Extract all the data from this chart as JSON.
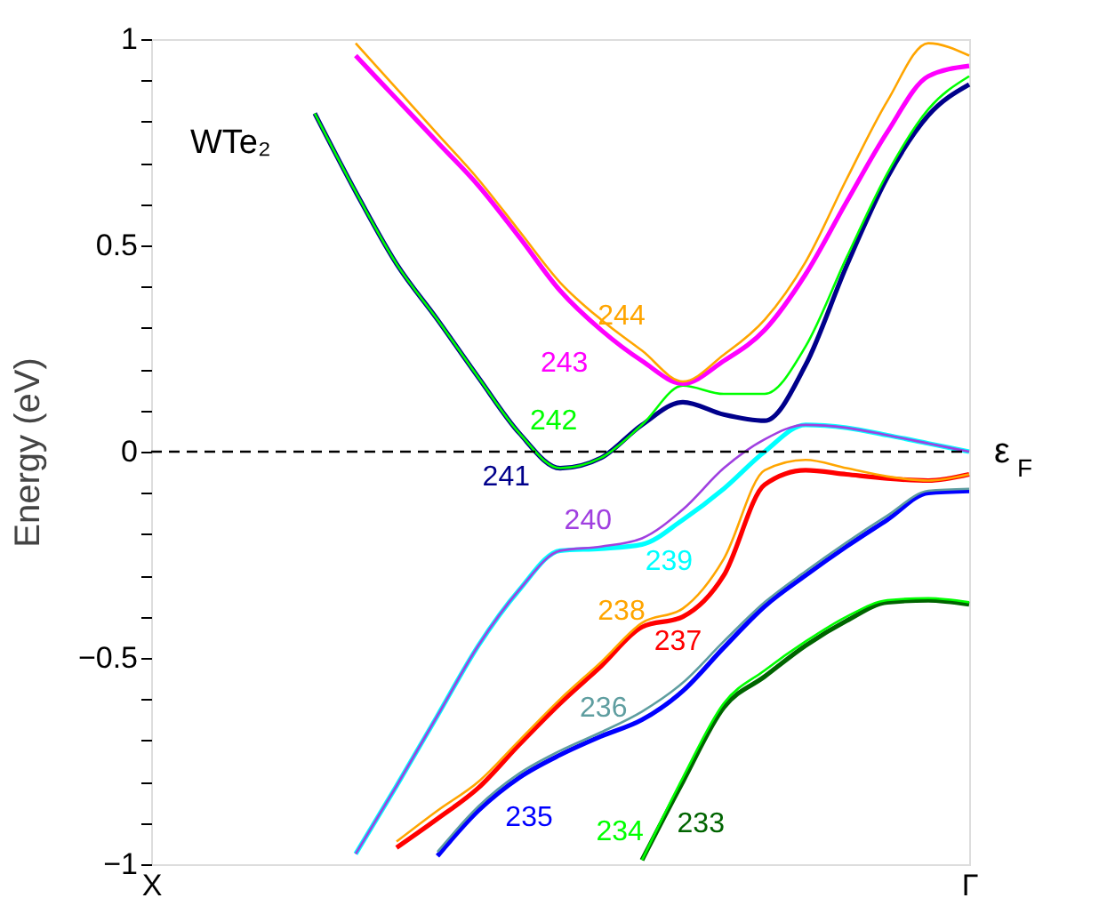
{
  "chart_data": {
    "type": "line",
    "ylabel": "Energy (eV)",
    "categories": [
      "X",
      null,
      null,
      null,
      null,
      null,
      null,
      null,
      null,
      null,
      null,
      null,
      null,
      null,
      null,
      null,
      null,
      null,
      null,
      null,
      "Γ"
    ],
    "ylim": [
      -1,
      1
    ],
    "yticks": [
      {
        "value": -1,
        "label": "−1"
      },
      {
        "value": -0.9,
        "label": null
      },
      {
        "value": -0.8,
        "label": null
      },
      {
        "value": -0.7,
        "label": null
      },
      {
        "value": -0.6,
        "label": null
      },
      {
        "value": -0.5,
        "label": "−0.5"
      },
      {
        "value": -0.4,
        "label": null
      },
      {
        "value": -0.3,
        "label": null
      },
      {
        "value": -0.2,
        "label": null
      },
      {
        "value": -0.1,
        "label": null
      },
      0,
      {
        "value": 0.1,
        "label": null
      },
      {
        "value": 0.2,
        "label": null
      },
      {
        "value": 0.3,
        "label": null
      },
      {
        "value": 0.4,
        "label": null
      },
      0.5,
      {
        "value": 0.6,
        "label": null
      },
      {
        "value": 0.7,
        "label": null
      },
      {
        "value": 0.8,
        "label": null
      },
      {
        "value": 0.9,
        "label": null
      },
      1
    ],
    "grid": false,
    "legend": false,
    "line_style": "solid",
    "marker": "none",
    "ref_lines": [
      {
        "axis": "y",
        "value": 0,
        "label": "ε$_{F}$",
        "line_style": "dashed",
        "color": "#000000"
      }
    ],
    "series": [
      {
        "name": "244",
        "color": "#ffa500",
        "values": [
          null,
          null,
          null,
          null,
          null,
          0.99,
          0.88,
          0.77,
          0.66,
          0.535,
          0.41,
          0.32,
          0.245,
          0.17,
          0.235,
          0.32,
          0.46,
          0.66,
          0.85,
          0.99,
          0.96
        ]
      },
      {
        "name": "243",
        "color": "#ff00ff",
        "values": [
          null,
          null,
          null,
          null,
          null,
          0.96,
          0.855,
          0.75,
          0.645,
          0.52,
          0.39,
          0.295,
          0.22,
          0.165,
          0.22,
          0.295,
          0.43,
          0.605,
          0.775,
          0.91,
          0.935
        ]
      },
      {
        "name": "242",
        "color": "#00ff00",
        "values": [
          null,
          null,
          null,
          null,
          0.82,
          0.63,
          0.455,
          0.32,
          0.18,
          0.045,
          -0.04,
          -0.015,
          0.065,
          0.16,
          0.14,
          0.14,
          0.255,
          0.47,
          0.675,
          0.83,
          0.91
        ]
      },
      {
        "name": "241",
        "color": "#00008b",
        "values": [
          null,
          null,
          null,
          null,
          0.82,
          0.63,
          0.455,
          0.32,
          0.18,
          0.045,
          -0.04,
          -0.015,
          0.065,
          0.12,
          0.09,
          0.075,
          0.21,
          0.45,
          0.665,
          0.815,
          0.89
        ]
      },
      {
        "name": "240",
        "color": "#a040e0",
        "values": [
          null,
          null,
          null,
          null,
          null,
          -0.975,
          -0.81,
          -0.64,
          -0.47,
          -0.335,
          -0.24,
          -0.23,
          -0.21,
          -0.14,
          -0.04,
          0.03,
          0.065,
          0.058,
          0.04,
          0.02,
          0
        ]
      },
      {
        "name": "239",
        "color": "#00ffff",
        "values": [
          null,
          null,
          null,
          null,
          null,
          -0.975,
          -0.81,
          -0.64,
          -0.47,
          -0.335,
          -0.24,
          -0.235,
          -0.225,
          -0.165,
          -0.09,
          0.0,
          0.065,
          0.058,
          0.04,
          0.02,
          0
        ]
      },
      {
        "name": "238",
        "color": "#ffa500",
        "values": [
          null,
          null,
          null,
          null,
          null,
          null,
          -0.945,
          -0.87,
          -0.8,
          -0.7,
          -0.6,
          -0.51,
          -0.415,
          -0.38,
          -0.26,
          -0.045,
          -0.02,
          -0.04,
          -0.06,
          -0.07,
          -0.055
        ]
      },
      {
        "name": "237",
        "color": "#ff0000",
        "values": [
          null,
          null,
          null,
          null,
          null,
          null,
          -0.96,
          -0.89,
          -0.815,
          -0.71,
          -0.61,
          -0.52,
          -0.425,
          -0.4,
          -0.3,
          -0.08,
          -0.045,
          -0.055,
          -0.065,
          -0.07,
          -0.055
        ]
      },
      {
        "name": "236",
        "color": "#5f9ea0",
        "values": [
          null,
          null,
          null,
          null,
          null,
          null,
          null,
          -0.97,
          -0.86,
          -0.78,
          -0.725,
          -0.68,
          -0.63,
          -0.56,
          -0.46,
          -0.365,
          -0.29,
          -0.22,
          -0.155,
          -0.095,
          -0.09
        ]
      },
      {
        "name": "235",
        "color": "#0000ff",
        "values": [
          null,
          null,
          null,
          null,
          null,
          null,
          null,
          -0.98,
          -0.87,
          -0.79,
          -0.735,
          -0.69,
          -0.65,
          -0.58,
          -0.475,
          -0.375,
          -0.3,
          -0.23,
          -0.165,
          -0.1,
          -0.095
        ]
      },
      {
        "name": "234",
        "color": "#00ff00",
        "values": [
          null,
          null,
          null,
          null,
          null,
          null,
          null,
          null,
          null,
          null,
          null,
          null,
          -0.99,
          -0.79,
          -0.61,
          -0.53,
          -0.46,
          -0.4,
          -0.36,
          -0.355,
          -0.365
        ]
      },
      {
        "name": "233",
        "color": "#006400",
        "values": [
          null,
          null,
          null,
          null,
          null,
          null,
          null,
          null,
          null,
          null,
          null,
          null,
          -0.99,
          -0.8,
          -0.62,
          -0.545,
          -0.47,
          -0.41,
          -0.365,
          -0.36,
          -0.37
        ]
      }
    ],
    "annotations": [
      "WTe₂"
    ]
  }
}
